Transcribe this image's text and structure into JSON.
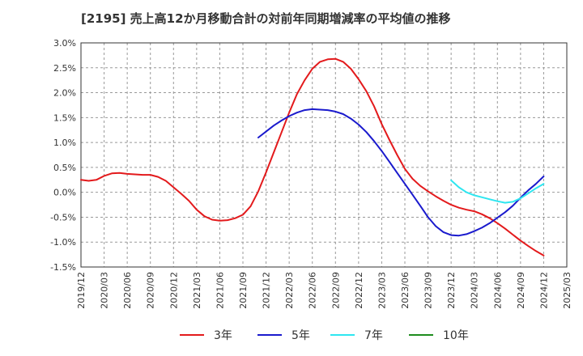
{
  "chart_data": {
    "type": "line",
    "title": "[2195]  売上高12か月移動合計の対前年同期増減率の平均値の推移",
    "xlabel": "",
    "ylabel": "",
    "ylim": [
      -1.5,
      3.0
    ],
    "y_ticks": [
      "3.0%",
      "2.5%",
      "2.0%",
      "1.5%",
      "1.0%",
      "0.5%",
      "0.0%",
      "-0.5%",
      "-1.0%",
      "-1.5%"
    ],
    "x_ticks": [
      "2019/12",
      "2020/03",
      "2020/06",
      "2020/09",
      "2020/12",
      "2021/03",
      "2021/06",
      "2021/09",
      "2021/12",
      "2022/03",
      "2022/06",
      "2022/09",
      "2022/12",
      "2023/03",
      "2023/06",
      "2023/09",
      "2023/12",
      "2024/03",
      "2024/06",
      "2024/09",
      "2024/12",
      "2025/03"
    ],
    "grid": true,
    "legend_position": "bottom",
    "series": [
      {
        "name": "3年",
        "color": "#e31a1c",
        "x": [
          "2019/12",
          "2020/01",
          "2020/02",
          "2020/03",
          "2020/04",
          "2020/05",
          "2020/06",
          "2020/07",
          "2020/08",
          "2020/09",
          "2020/10",
          "2020/11",
          "2020/12",
          "2021/01",
          "2021/02",
          "2021/03",
          "2021/04",
          "2021/05",
          "2021/06",
          "2021/07",
          "2021/08",
          "2021/09",
          "2021/10",
          "2021/11",
          "2021/12",
          "2022/01",
          "2022/02",
          "2022/03",
          "2022/04",
          "2022/05",
          "2022/06",
          "2022/07",
          "2022/08",
          "2022/09",
          "2022/10",
          "2022/11",
          "2022/12",
          "2023/01",
          "2023/02",
          "2023/03",
          "2023/04",
          "2023/05",
          "2023/06",
          "2023/07",
          "2023/08",
          "2023/09",
          "2023/10",
          "2023/11",
          "2023/12",
          "2024/01",
          "2024/02",
          "2024/03",
          "2024/04",
          "2024/05",
          "2024/06",
          "2024/07",
          "2024/08",
          "2024/09",
          "2024/10",
          "2024/11",
          "2024/12"
        ],
        "values": [
          0.25,
          0.23,
          0.25,
          0.33,
          0.38,
          0.39,
          0.37,
          0.36,
          0.35,
          0.35,
          0.31,
          0.23,
          0.1,
          -0.03,
          -0.17,
          -0.35,
          -0.48,
          -0.55,
          -0.57,
          -0.56,
          -0.52,
          -0.45,
          -0.28,
          0.02,
          0.4,
          0.8,
          1.2,
          1.6,
          1.97,
          2.25,
          2.48,
          2.62,
          2.67,
          2.68,
          2.62,
          2.48,
          2.27,
          2.03,
          1.73,
          1.37,
          1.05,
          0.75,
          0.47,
          0.27,
          0.13,
          0.02,
          -0.08,
          -0.17,
          -0.25,
          -0.31,
          -0.35,
          -0.38,
          -0.44,
          -0.52,
          -0.62,
          -0.73,
          -0.85,
          -0.97,
          -1.08,
          -1.18,
          -1.27
        ]
      },
      {
        "name": "5年",
        "color": "#1a1acd",
        "x": [
          "2021/11",
          "2021/12",
          "2022/01",
          "2022/02",
          "2022/03",
          "2022/04",
          "2022/05",
          "2022/06",
          "2022/07",
          "2022/08",
          "2022/09",
          "2022/10",
          "2022/11",
          "2022/12",
          "2023/01",
          "2023/02",
          "2023/03",
          "2023/04",
          "2023/05",
          "2023/06",
          "2023/07",
          "2023/08",
          "2023/09",
          "2023/10",
          "2023/11",
          "2023/12",
          "2024/01",
          "2024/02",
          "2024/03",
          "2024/04",
          "2024/05",
          "2024/06",
          "2024/07",
          "2024/08",
          "2024/09",
          "2024/10",
          "2024/11",
          "2024/12"
        ],
        "values": [
          1.1,
          1.22,
          1.34,
          1.44,
          1.53,
          1.6,
          1.65,
          1.67,
          1.66,
          1.65,
          1.62,
          1.57,
          1.48,
          1.36,
          1.21,
          1.03,
          0.83,
          0.61,
          0.39,
          0.17,
          -0.05,
          -0.27,
          -0.5,
          -0.68,
          -0.8,
          -0.86,
          -0.87,
          -0.84,
          -0.78,
          -0.71,
          -0.62,
          -0.51,
          -0.4,
          -0.27,
          -0.11,
          0.04,
          0.17,
          0.32
        ]
      },
      {
        "name": "7年",
        "color": "#2ee6f0",
        "x": [
          "2023/12",
          "2024/01",
          "2024/02",
          "2024/03",
          "2024/04",
          "2024/05",
          "2024/06",
          "2024/07",
          "2024/08",
          "2024/09",
          "2024/10",
          "2024/11",
          "2024/12"
        ],
        "values": [
          0.24,
          0.1,
          0.0,
          -0.06,
          -0.1,
          -0.14,
          -0.18,
          -0.21,
          -0.19,
          -0.12,
          -0.02,
          0.08,
          0.17
        ]
      },
      {
        "name": "10年",
        "color": "#1e8c1e",
        "x": [],
        "values": []
      }
    ]
  }
}
